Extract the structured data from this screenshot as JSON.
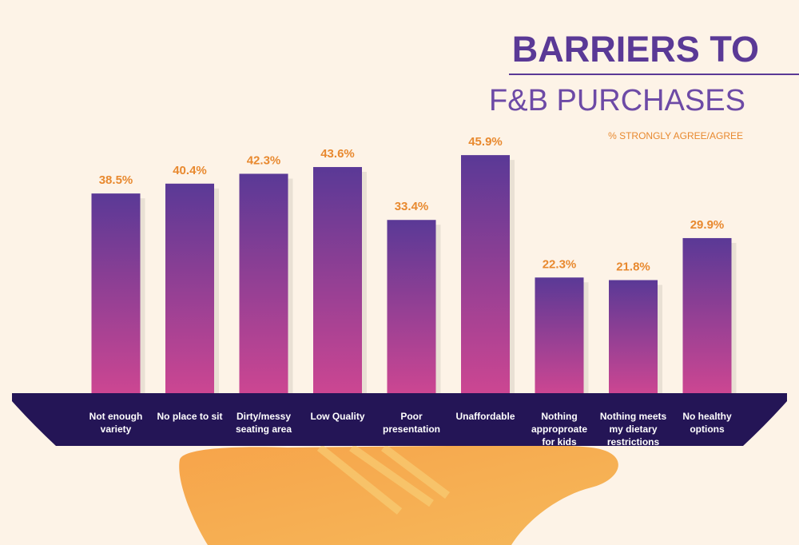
{
  "chart_data": {
    "type": "bar",
    "title_lines": [
      "BARRIERS TO",
      "F&B PURCHASES"
    ],
    "subtitle": "% STRONGLY AGREE/AGREE",
    "categories": [
      "Not enough variety",
      "No place to sit",
      "Dirty/messy seating area",
      "Low Quality",
      "Poor presentation",
      "Unaffordable",
      "Nothing approproate for kids",
      "Nothing meets my dietary restrictions",
      "No healthy options"
    ],
    "values": [
      38.5,
      40.4,
      42.3,
      43.6,
      33.4,
      45.9,
      22.3,
      21.8,
      29.9
    ],
    "value_labels": [
      "38.5%",
      "40.4%",
      "42.3%",
      "43.6%",
      "33.4%",
      "45.9%",
      "22.3%",
      "21.8%",
      "29.9%"
    ],
    "color": [
      "#5a3996",
      "#cc4692"
    ]
  }
}
